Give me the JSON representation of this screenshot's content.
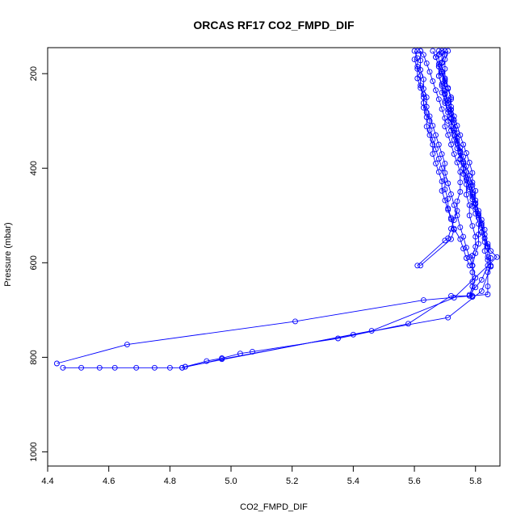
{
  "chart_data": {
    "type": "line",
    "title": "ORCAS RF17 CO2_FMPD_DIF",
    "xlabel": "CO2_FMPD_DIF",
    "ylabel": "Pressure (mbar)",
    "xlim": [
      4.4,
      5.88
    ],
    "ylim": [
      1030,
      145
    ],
    "y_reversed": true,
    "x_ticks": [
      "4.4",
      "4.6",
      "4.8",
      "5.0",
      "5.2",
      "5.4",
      "5.6",
      "5.8"
    ],
    "y_ticks": [
      "200",
      "400",
      "600",
      "800",
      "1000"
    ],
    "color": "#0000ff",
    "grid": false,
    "series": [
      {
        "points": [
          [
            4.43,
            813
          ],
          [
            4.66,
            773
          ],
          [
            5.21,
            724
          ],
          [
            5.63,
            679
          ],
          [
            5.84,
            667
          ],
          [
            5.84,
            650
          ],
          [
            5.84,
            620
          ],
          [
            5.85,
            606
          ],
          [
            5.84,
            588
          ],
          [
            5.84,
            568
          ],
          [
            5.83,
            548
          ],
          [
            5.83,
            530
          ],
          [
            5.82,
            509
          ],
          [
            5.81,
            490
          ],
          [
            5.8,
            468
          ],
          [
            5.8,
            448
          ],
          [
            5.79,
            430
          ],
          [
            5.79,
            410
          ],
          [
            5.78,
            388
          ],
          [
            5.77,
            368
          ],
          [
            5.76,
            350
          ],
          [
            5.75,
            330
          ],
          [
            5.74,
            310
          ],
          [
            5.73,
            290
          ],
          [
            5.72,
            270
          ],
          [
            5.72,
            250
          ],
          [
            5.71,
            230
          ],
          [
            5.7,
            213
          ],
          [
            5.69,
            195
          ],
          [
            5.69,
            178
          ],
          [
            5.7,
            160
          ],
          [
            5.7,
            152
          ]
        ]
      },
      {
        "points": [
          [
            4.45,
            822
          ],
          [
            4.51,
            822
          ],
          [
            4.57,
            822
          ],
          [
            4.62,
            822
          ],
          [
            4.69,
            822
          ],
          [
            4.75,
            822
          ],
          [
            4.8,
            822
          ],
          [
            4.84,
            822
          ],
          [
            4.85,
            820
          ],
          [
            4.92,
            808
          ],
          [
            4.97,
            802
          ],
          [
            5.03,
            792
          ],
          [
            5.07,
            788
          ],
          [
            5.35,
            760
          ],
          [
            5.58,
            729
          ],
          [
            5.72,
            670
          ],
          [
            5.79,
            670
          ]
        ]
      },
      {
        "points": [
          [
            4.84,
            822
          ],
          [
            4.97,
            804
          ],
          [
            5.4,
            752
          ],
          [
            5.71,
            716
          ],
          [
            5.82,
            660
          ],
          [
            5.85,
            608
          ],
          [
            5.85,
            590
          ],
          [
            5.84,
            565
          ],
          [
            5.83,
            548
          ],
          [
            5.82,
            525
          ],
          [
            5.81,
            505
          ],
          [
            5.8,
            487
          ],
          [
            5.79,
            466
          ],
          [
            5.78,
            445
          ],
          [
            5.77,
            425
          ],
          [
            5.76,
            400
          ],
          [
            5.75,
            380
          ],
          [
            5.74,
            358
          ],
          [
            5.73,
            340
          ],
          [
            5.72,
            320
          ],
          [
            5.71,
            300
          ],
          [
            5.71,
            282
          ],
          [
            5.7,
            262
          ],
          [
            5.7,
            244
          ],
          [
            5.69,
            226
          ],
          [
            5.68,
            205
          ],
          [
            5.68,
            185
          ],
          [
            5.67,
            165
          ],
          [
            5.68,
            152
          ]
        ]
      },
      {
        "points": [
          [
            4.85,
            820
          ],
          [
            5.46,
            744
          ],
          [
            5.73,
            674
          ],
          [
            5.87,
            588
          ],
          [
            5.85,
            575
          ],
          [
            5.84,
            560
          ],
          [
            5.83,
            540
          ],
          [
            5.82,
            520
          ],
          [
            5.81,
            500
          ],
          [
            5.79,
            480
          ],
          [
            5.79,
            460
          ],
          [
            5.78,
            440
          ],
          [
            5.77,
            420
          ],
          [
            5.76,
            400
          ],
          [
            5.75,
            382
          ],
          [
            5.75,
            365
          ],
          [
            5.74,
            348
          ],
          [
            5.73,
            330
          ],
          [
            5.72,
            312
          ],
          [
            5.72,
            294
          ],
          [
            5.71,
            276
          ],
          [
            5.7,
            258
          ],
          [
            5.69,
            240
          ],
          [
            5.69,
            222
          ],
          [
            5.68,
            205
          ],
          [
            5.68,
            185
          ],
          [
            5.67,
            165
          ],
          [
            5.66,
            152
          ]
        ]
      },
      {
        "points": [
          [
            5.61,
            606
          ],
          [
            5.7,
            553
          ],
          [
            5.71,
            548
          ],
          [
            5.72,
            528
          ],
          [
            5.73,
            510
          ],
          [
            5.74,
            490
          ],
          [
            5.74,
            470
          ],
          [
            5.75,
            450
          ],
          [
            5.75,
            430
          ],
          [
            5.75,
            408
          ],
          [
            5.74,
            388
          ],
          [
            5.73,
            370
          ],
          [
            5.72,
            350
          ],
          [
            5.71,
            330
          ],
          [
            5.7,
            312
          ],
          [
            5.7,
            294
          ],
          [
            5.69,
            275
          ],
          [
            5.68,
            254
          ],
          [
            5.67,
            235
          ],
          [
            5.66,
            216
          ],
          [
            5.65,
            196
          ],
          [
            5.64,
            178
          ],
          [
            5.63,
            160
          ],
          [
            5.62,
            152
          ]
        ]
      },
      {
        "points": [
          [
            5.62,
            606
          ],
          [
            5.72,
            550
          ],
          [
            5.73,
            530
          ],
          [
            5.72,
            505
          ],
          [
            5.71,
            485
          ],
          [
            5.71,
            465
          ],
          [
            5.7,
            445
          ],
          [
            5.7,
            425
          ],
          [
            5.69,
            400
          ],
          [
            5.68,
            380
          ],
          [
            5.67,
            360
          ],
          [
            5.66,
            340
          ],
          [
            5.65,
            320
          ],
          [
            5.65,
            300
          ],
          [
            5.64,
            282
          ],
          [
            5.63,
            262
          ],
          [
            5.63,
            244
          ],
          [
            5.62,
            225
          ],
          [
            5.62,
            205
          ],
          [
            5.61,
            185
          ],
          [
            5.61,
            167
          ],
          [
            5.6,
            152
          ]
        ]
      },
      {
        "points": [
          [
            5.78,
            606
          ],
          [
            5.77,
            590
          ],
          [
            5.76,
            570
          ],
          [
            5.75,
            550
          ],
          [
            5.73,
            528
          ],
          [
            5.72,
            508
          ],
          [
            5.71,
            488
          ],
          [
            5.7,
            468
          ],
          [
            5.69,
            448
          ],
          [
            5.69,
            428
          ],
          [
            5.68,
            408
          ],
          [
            5.67,
            390
          ],
          [
            5.66,
            370
          ],
          [
            5.66,
            350
          ],
          [
            5.65,
            330
          ],
          [
            5.64,
            312
          ],
          [
            5.64,
            292
          ],
          [
            5.63,
            272
          ],
          [
            5.63,
            250
          ],
          [
            5.62,
            230
          ],
          [
            5.61,
            210
          ],
          [
            5.61,
            190
          ],
          [
            5.6,
            170
          ],
          [
            5.61,
            152
          ]
        ]
      },
      {
        "points": [
          [
            5.79,
            606
          ],
          [
            5.78,
            588
          ],
          [
            5.77,
            568
          ],
          [
            5.76,
            545
          ],
          [
            5.75,
            525
          ],
          [
            5.74,
            500
          ],
          [
            5.73,
            478
          ],
          [
            5.72,
            455
          ],
          [
            5.71,
            432
          ],
          [
            5.7,
            410
          ],
          [
            5.7,
            390
          ],
          [
            5.69,
            370
          ],
          [
            5.68,
            350
          ],
          [
            5.67,
            330
          ],
          [
            5.66,
            310
          ],
          [
            5.65,
            290
          ],
          [
            5.64,
            270
          ],
          [
            5.64,
            250
          ],
          [
            5.63,
            232
          ],
          [
            5.63,
            212
          ],
          [
            5.62,
            192
          ],
          [
            5.62,
            172
          ],
          [
            5.62,
            152
          ]
        ]
      },
      {
        "points": [
          [
            5.79,
            672
          ],
          [
            5.79,
            640
          ],
          [
            5.79,
            620
          ],
          [
            5.79,
            606
          ],
          [
            5.79,
            585
          ],
          [
            5.8,
            566
          ],
          [
            5.8,
            545
          ],
          [
            5.79,
            522
          ],
          [
            5.78,
            500
          ],
          [
            5.78,
            478
          ],
          [
            5.77,
            456
          ],
          [
            5.77,
            434
          ],
          [
            5.76,
            412
          ],
          [
            5.76,
            390
          ],
          [
            5.75,
            368
          ],
          [
            5.74,
            348
          ],
          [
            5.74,
            326
          ],
          [
            5.73,
            305
          ],
          [
            5.72,
            284
          ],
          [
            5.71,
            262
          ],
          [
            5.7,
            242
          ],
          [
            5.7,
            222
          ],
          [
            5.69,
            200
          ],
          [
            5.68,
            180
          ],
          [
            5.68,
            160
          ],
          [
            5.69,
            152
          ]
        ]
      },
      {
        "points": [
          [
            5.78,
            670
          ],
          [
            5.79,
            650
          ],
          [
            5.8,
            632
          ],
          [
            5.79,
            606
          ],
          [
            5.8,
            580
          ],
          [
            5.81,
            560
          ],
          [
            5.81,
            540
          ],
          [
            5.81,
            518
          ],
          [
            5.8,
            496
          ],
          [
            5.8,
            474
          ],
          [
            5.79,
            452
          ],
          [
            5.78,
            430
          ],
          [
            5.77,
            408
          ],
          [
            5.76,
            386
          ],
          [
            5.75,
            364
          ],
          [
            5.74,
            342
          ],
          [
            5.73,
            320
          ],
          [
            5.73,
            298
          ],
          [
            5.72,
            276
          ],
          [
            5.72,
            254
          ],
          [
            5.71,
            232
          ],
          [
            5.7,
            210
          ],
          [
            5.7,
            190
          ],
          [
            5.7,
            170
          ],
          [
            5.71,
            152
          ]
        ]
      },
      {
        "points": [
          [
            5.78,
            668
          ],
          [
            5.8,
            652
          ],
          [
            5.82,
            636
          ],
          [
            5.84,
            606
          ],
          [
            5.84,
            594
          ],
          [
            5.83,
            575
          ],
          [
            5.83,
            556
          ],
          [
            5.82,
            536
          ],
          [
            5.82,
            516
          ],
          [
            5.81,
            496
          ],
          [
            5.8,
            476
          ],
          [
            5.79,
            456
          ],
          [
            5.79,
            436
          ],
          [
            5.78,
            416
          ],
          [
            5.77,
            396
          ],
          [
            5.76,
            376
          ],
          [
            5.75,
            356
          ],
          [
            5.74,
            336
          ],
          [
            5.73,
            316
          ],
          [
            5.72,
            296
          ],
          [
            5.72,
            276
          ],
          [
            5.71,
            256
          ],
          [
            5.7,
            236
          ],
          [
            5.7,
            216
          ],
          [
            5.69,
            196
          ],
          [
            5.69,
            176
          ],
          [
            5.69,
            156
          ]
        ]
      }
    ]
  }
}
